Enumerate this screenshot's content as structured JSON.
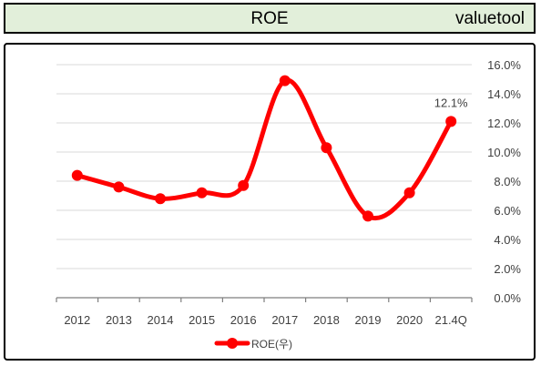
{
  "header": {
    "title": "ROE",
    "brand": "valuetool"
  },
  "colors": {
    "header_bg": "#e2efda",
    "series": "#ff0000",
    "grid": "#d9d9d9",
    "axis": "#404040"
  },
  "chart_data": {
    "type": "line",
    "categories": [
      "2012",
      "2013",
      "2014",
      "2015",
      "2016",
      "2017",
      "2018",
      "2019",
      "2020",
      "21.4Q"
    ],
    "series": [
      {
        "name": "ROE(우)",
        "values": [
          8.4,
          7.6,
          6.8,
          7.2,
          7.7,
          14.9,
          10.3,
          5.6,
          7.2,
          12.1
        ]
      }
    ],
    "y_axis": {
      "side": "right",
      "ylim": [
        0,
        16
      ],
      "ticks": [
        "0.0%",
        "2.0%",
        "4.0%",
        "6.0%",
        "8.0%",
        "10.0%",
        "12.0%",
        "14.0%",
        "16.0%"
      ]
    },
    "data_labels": [
      {
        "index": 9,
        "text": "12.1%"
      }
    ],
    "legend": {
      "position": "bottom",
      "label": "ROE(우)"
    },
    "grid": true,
    "smooth": true
  }
}
